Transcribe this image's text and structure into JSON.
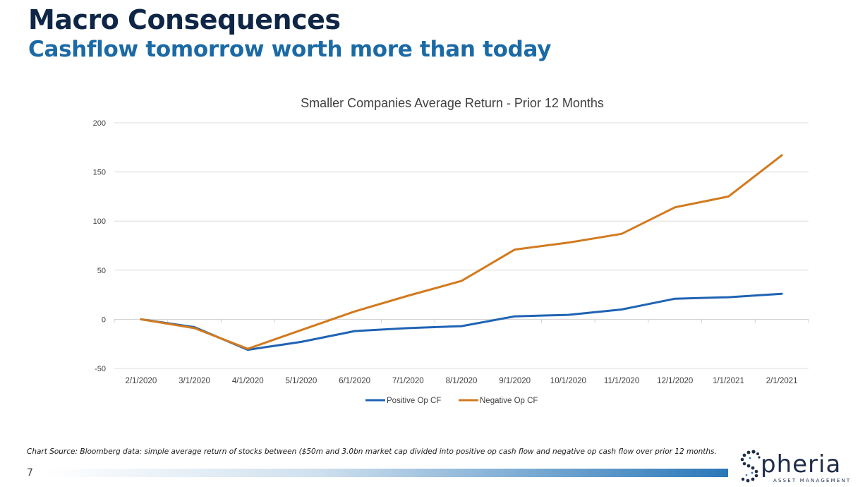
{
  "slide": {
    "title": "Macro Consequences",
    "subtitle": "Cashflow tomorrow worth more than today",
    "source_note": "Chart Source: Bloomberg data: simple average return of stocks between ($50m and 3.0bn market cap divided into positive op cash flow and negative op cash flow over prior 12 months.",
    "page_number": "7",
    "logo": {
      "word": "pheria",
      "initial": "S",
      "tagline": "ASSET MANAGEMENT",
      "icon": "spheria-s-logo-icon"
    }
  },
  "chart_data": {
    "type": "line",
    "title": "Smaller Companies Average Return - Prior 12 Months",
    "xlabel": "",
    "ylabel": "",
    "x": [
      "2/1/2020",
      "3/1/2020",
      "4/1/2020",
      "5/1/2020",
      "6/1/2020",
      "7/1/2020",
      "8/1/2020",
      "9/1/2020",
      "10/1/2020",
      "11/1/2020",
      "12/1/2020",
      "1/1/2021",
      "2/1/2021"
    ],
    "ylim": [
      -50,
      200
    ],
    "yticks": [
      -50,
      0,
      50,
      100,
      150,
      200
    ],
    "grid": true,
    "legend": "bottom",
    "series": [
      {
        "name": "Positive Op CF",
        "color": "#1f63b4",
        "values": [
          0,
          -8,
          -31,
          -23,
          -12,
          -9,
          -7,
          3,
          4.5,
          10,
          21,
          22.5,
          26
        ]
      },
      {
        "name": "Negative Op CF",
        "color": "#d27a1e",
        "values": [
          0,
          -9,
          -30,
          -11,
          8,
          24,
          39,
          71,
          78,
          87,
          114,
          125,
          167
        ]
      }
    ]
  }
}
